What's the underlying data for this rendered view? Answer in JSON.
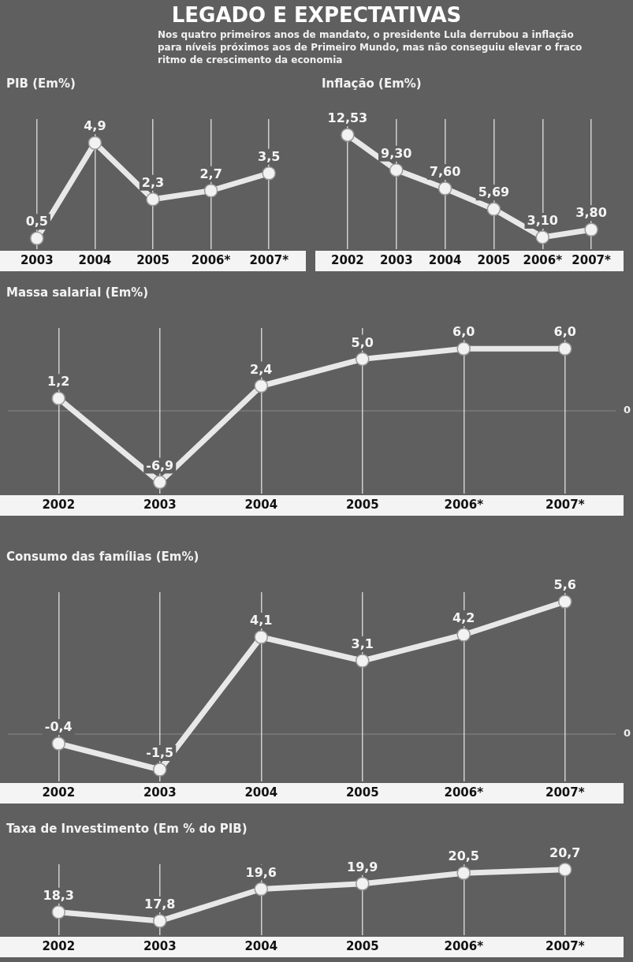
{
  "chart_data": [
    {
      "type": "other",
      "title": "LEGADO E EXPECTATIVAS",
      "subtitle": "Nos quatro primeiros anos de mandato, o presidente Lula derrubou a inflação para níveis próximos aos de Primeiro Mundo, mas não conseguiu elevar o fraco ritmo de crescimento da economia"
    },
    {
      "type": "line",
      "title": "PIB (Em%)",
      "categories": [
        "2003",
        "2004",
        "2005",
        "2006*",
        "2007*"
      ],
      "values": [
        0.5,
        4.9,
        2.3,
        2.7,
        3.5
      ],
      "value_labels": [
        "0,5",
        "4,9",
        "2,3",
        "2,7",
        "3,5"
      ],
      "color": "#e8e8e8",
      "marker": "circle",
      "grid": "x"
    },
    {
      "type": "line",
      "title": "Inflação (Em%)",
      "categories": [
        "2002",
        "2003",
        "2004",
        "2005",
        "2006*",
        "2007*"
      ],
      "values": [
        12.53,
        9.3,
        7.6,
        5.69,
        3.1,
        3.8
      ],
      "value_labels": [
        "12,53",
        "9,30",
        "7,60",
        "5,69",
        "3,10",
        "3,80"
      ],
      "color": "#e8e8e8",
      "marker": "circle",
      "grid": "x"
    },
    {
      "type": "line",
      "title": "Massa salarial (Em%)",
      "categories": [
        "2002",
        "2003",
        "2004",
        "2005",
        "2006*",
        "2007*"
      ],
      "values": [
        1.2,
        -6.9,
        2.4,
        5.0,
        6.0,
        6.0
      ],
      "value_labels": [
        "1,2",
        "-6,9",
        "2,4",
        "5,0",
        "6,0",
        "6,0"
      ],
      "color": "#e8e8e8",
      "marker": "circle",
      "grid": "x",
      "ref_lines": [
        {
          "axis": "y",
          "value": 0,
          "label": "0"
        }
      ]
    },
    {
      "type": "line",
      "title": "Consumo das famílias (Em%)",
      "categories": [
        "2002",
        "2003",
        "2004",
        "2005",
        "2006*",
        "2007*"
      ],
      "values": [
        -0.4,
        -1.5,
        4.1,
        3.1,
        4.2,
        5.6
      ],
      "value_labels": [
        "-0,4",
        "-1,5",
        "4,1",
        "3,1",
        "4,2",
        "5,6"
      ],
      "color": "#e8e8e8",
      "marker": "circle",
      "grid": "x",
      "ref_lines": [
        {
          "axis": "y",
          "value": 0,
          "label": "0"
        }
      ]
    },
    {
      "type": "line",
      "title": "Taxa de Investimento (Em % do PIB)",
      "categories": [
        "2002",
        "2003",
        "2004",
        "2005",
        "2006*",
        "2007*"
      ],
      "values": [
        18.3,
        17.8,
        19.6,
        19.9,
        20.5,
        20.7
      ],
      "value_labels": [
        "18,3",
        "17,8",
        "19,6",
        "19,9",
        "20,5",
        "20,7"
      ],
      "color": "#e8e8e8",
      "marker": "circle",
      "grid": "x"
    }
  ]
}
